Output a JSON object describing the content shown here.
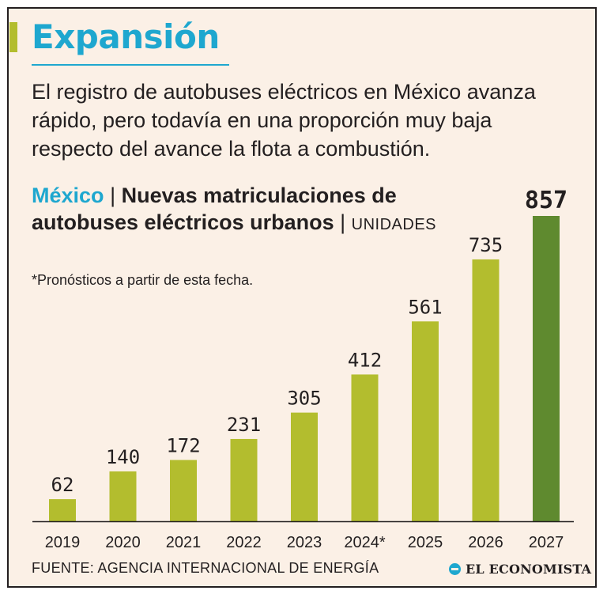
{
  "header": {
    "title": "Expansión",
    "subtitle": "El registro de autobuses eléctricos en México avanza rápido, pero todavía en una proporción muy baja respecto del avance la flota a combustión."
  },
  "chart_heading": {
    "country": "México",
    "separator": "|",
    "title": "Nuevas matriculaciones de autobuses eléctricos urbanos",
    "units": "UNIDADES"
  },
  "note": "*Pronósticos a partir de esta fecha.",
  "footer": {
    "source": "FUENTE: AGENCIA INTERNACIONAL DE ENERGÍA",
    "brand": "EL ECONOMISTA"
  },
  "colors": {
    "accent": "#1ea7cf",
    "bar": "#b3bd2e",
    "bar_highlight": "#5f8a2f",
    "background": "#fbf0e6"
  },
  "chart_data": {
    "type": "bar",
    "title": "Nuevas matriculaciones de autobuses eléctricos urbanos",
    "xlabel": "",
    "ylabel": "UNIDADES",
    "categories": [
      "2019",
      "2020",
      "2021",
      "2022",
      "2023",
      "2024*",
      "2025",
      "2026",
      "2027"
    ],
    "values": [
      62,
      140,
      172,
      231,
      305,
      412,
      561,
      735,
      857
    ],
    "highlight_index": 8,
    "ylim": [
      0,
      857
    ],
    "grid": false
  }
}
